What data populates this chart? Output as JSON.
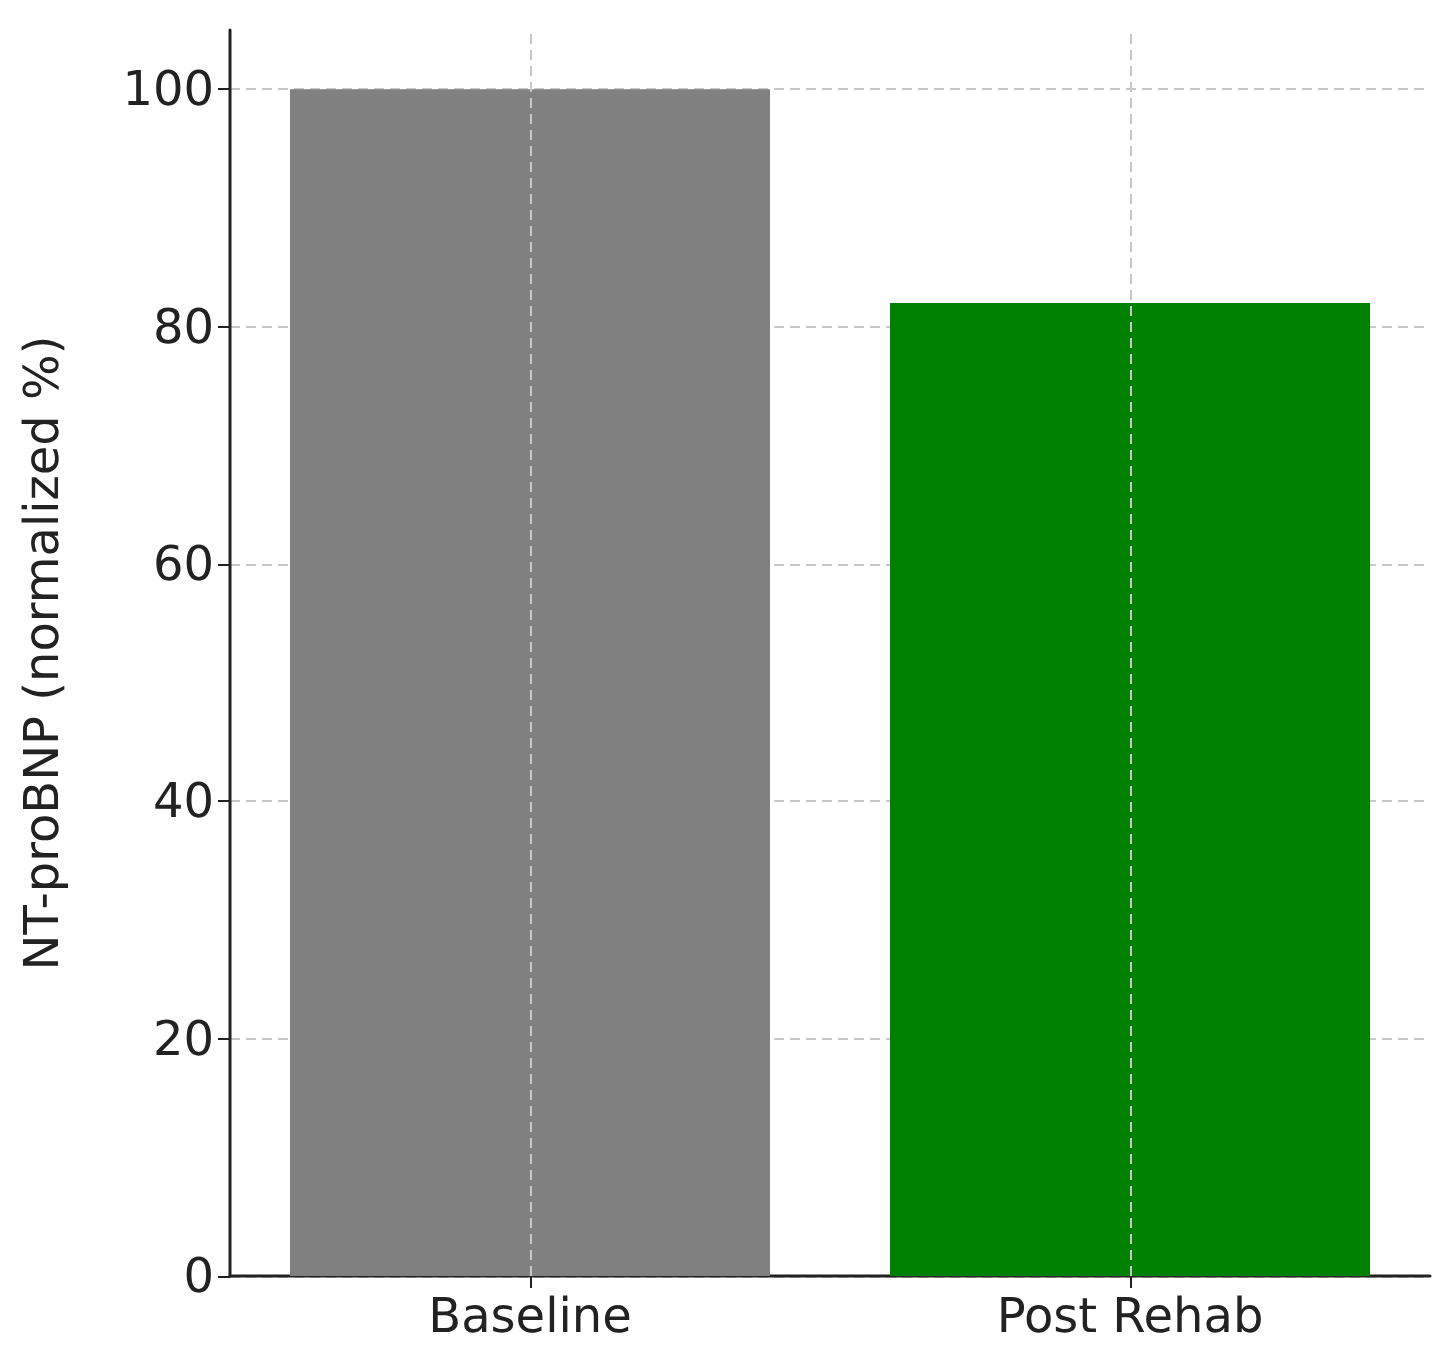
{
  "chart_data": {
    "type": "bar",
    "ylabel": "NT-proBNP (normalized %)",
    "categories": [
      "Baseline",
      "Post Rehab"
    ],
    "values": [
      100,
      82
    ],
    "colors": [
      "#808080",
      "#008000"
    ],
    "ylim": [
      0,
      105
    ],
    "yticks": [
      0,
      20,
      40,
      60,
      80,
      100
    ],
    "grid": true
  }
}
